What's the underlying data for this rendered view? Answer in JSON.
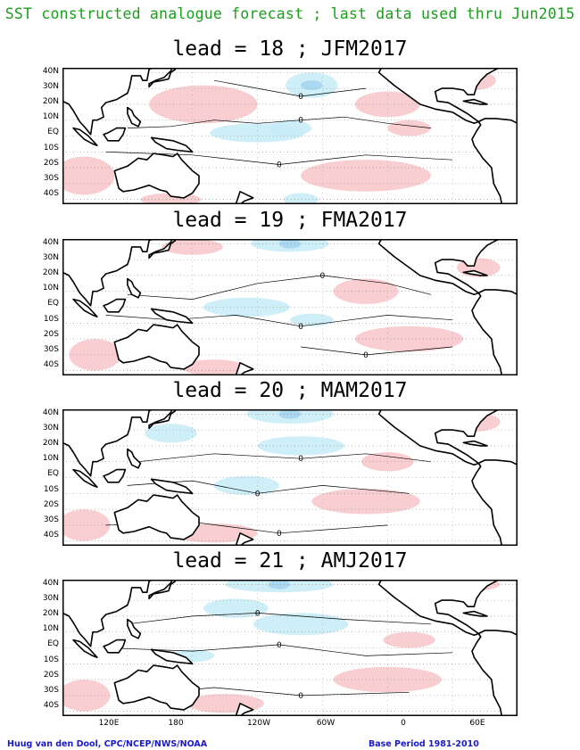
{
  "title": "SST constructed analogue forecast ; last data used thru Jun2015",
  "panels": [
    {
      "label": "lead = 18 ; JFM2017"
    },
    {
      "label": "lead = 19 ; FMA2017"
    },
    {
      "label": "lead = 20 ; MAM2017"
    },
    {
      "label": "lead = 21 ; AMJ2017"
    }
  ],
  "lat_labels": [
    "40N",
    "30N",
    "20N",
    "10N",
    "EQ",
    "10S",
    "20S",
    "30S",
    "40S"
  ],
  "lon_labels": [
    "120E",
    "180",
    "120W",
    "60W",
    "0",
    "60E"
  ],
  "contour_label": "0",
  "footer_left": "Huug van den Dool, CPC/NCEP/NWS/NOAA",
  "footer_right": "Base Period 1981-2010",
  "colors": {
    "title": "#1aa01a",
    "footer": "#1a1ad0",
    "positive_anomaly": "#f7c9cc",
    "negative_anomaly": "#c9ecf7",
    "strong_negative": "#a9d8f2"
  }
}
